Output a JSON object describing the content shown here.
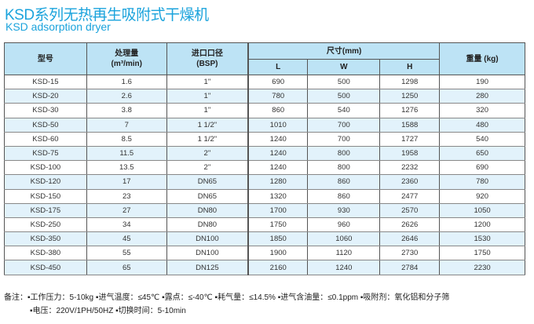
{
  "title_cn": "KSD系列无热再生吸附式干燥机",
  "title_en": "KSD adsorption  dryer",
  "headers": {
    "model": "型号",
    "flow": "处理量",
    "flow_unit": "(m³/min)",
    "inlet": "进口口径",
    "inlet_unit": "(BSP)",
    "size": "尺寸(mm)",
    "L": "L",
    "W": "W",
    "H": "H",
    "weight": "重量 (kg)"
  },
  "rows": [
    [
      "KSD-15",
      "1.6",
      "1\"",
      "690",
      "500",
      "1298",
      "190"
    ],
    [
      "KSD-20",
      "2.6",
      "1\"",
      "780",
      "500",
      "1250",
      "280"
    ],
    [
      "KSD-30",
      "3.8",
      "1\"",
      "860",
      "540",
      "1276",
      "320"
    ],
    [
      "KSD-50",
      "7",
      "1 1/2\"",
      "1010",
      "700",
      "1588",
      "480"
    ],
    [
      "KSD-60",
      "8.5",
      "1 1/2\"",
      "1240",
      "700",
      "1727",
      "540"
    ],
    [
      "KSD-75",
      "11.5",
      "2\"",
      "1240",
      "800",
      "1958",
      "650"
    ],
    [
      "KSD-100",
      "13.5",
      "2\"",
      "1240",
      "800",
      "2232",
      "690"
    ],
    [
      "KSD-120",
      "17",
      "DN65",
      "1280",
      "860",
      "2360",
      "780"
    ],
    [
      "KSD-150",
      "23",
      "DN65",
      "1320",
      "860",
      "2477",
      "920"
    ],
    [
      "KSD-175",
      "27",
      "DN80",
      "1700",
      "930",
      "2570",
      "1050"
    ],
    [
      "KSD-250",
      "34",
      "DN80",
      "1750",
      "960",
      "2626",
      "1200"
    ],
    [
      "KSD-350",
      "45",
      "DN100",
      "1850",
      "1060",
      "2646",
      "1530"
    ],
    [
      "KSD-380",
      "55",
      "DN100",
      "1900",
      "1120",
      "2730",
      "1750"
    ],
    [
      "KSD-450",
      "65",
      "DN125",
      "2160",
      "1240",
      "2784",
      "2230"
    ]
  ],
  "note_line1": "备注：▪工作压力：5-10kg ▪进气温度：≤45℃ ▪露点：≤-40℃ ▪耗气量：≤14.5% ▪进气含油量：≤0.1ppm ▪吸附剂：氧化铝和分子筛",
  "note_line2": "▪电压：220V/1PH/50HZ ▪切换时间：5-10min",
  "colors": {
    "title": "#1ba3dc",
    "header_bg": "#bde3f5",
    "alt_row": "#e2f2fb"
  }
}
